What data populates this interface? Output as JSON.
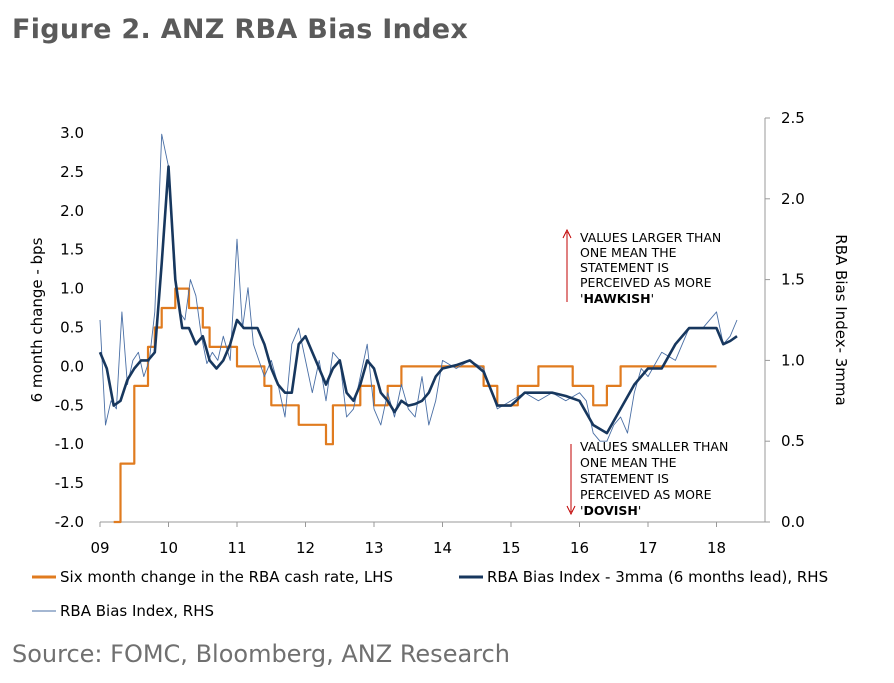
{
  "header": {
    "title": "Figure 2. ANZ RBA Bias Index"
  },
  "footer": {
    "source": "Source: FOMC, Bloomberg, ANZ Research"
  },
  "colors": {
    "cash_rate": "#e07b1f",
    "bias_3mma": "#17375e",
    "bias_raw": "#4a6fa5",
    "annotation_arrow": "#c00000"
  },
  "chart_data": {
    "type": "line",
    "x_ticks": [
      "09",
      "10",
      "11",
      "12",
      "13",
      "14",
      "15",
      "16",
      "17",
      "18"
    ],
    "y_left": {
      "label": "6 month change - bps",
      "ylim": [
        -2.0,
        3.0
      ],
      "ticks": [
        "-2.0",
        "-1.5",
        "-1.0",
        "-0.5",
        "0.0",
        "0.5",
        "1.0",
        "1.5",
        "2.0",
        "2.5",
        "3.0"
      ]
    },
    "y_right": {
      "label": "RBA Bias Index- 3mma",
      "ylim": [
        0.0,
        2.5
      ],
      "ticks": [
        "0.0",
        "0.5",
        "1.0",
        "1.5",
        "2.0",
        "2.5"
      ]
    },
    "annotations": {
      "hawkish": {
        "lines": [
          "VALUES LARGER THAN",
          "ONE MEAN THE",
          "STATEMENT  IS",
          "PERCEIVED AS MORE"
        ],
        "emphasis": "HAWKISH"
      },
      "dovish": {
        "lines": [
          "VALUES SMALLER THAN",
          "ONE MEAN THE",
          "STATEMENT  IS",
          "PERCEIVED AS MORE"
        ],
        "emphasis": "DOVISH"
      }
    },
    "series": [
      {
        "name": "Six month change in the RBA cash rate, LHS",
        "axis": "left",
        "x": [
          2009.2,
          2009.3,
          2009.4,
          2009.5,
          2009.6,
          2009.7,
          2009.8,
          2009.9,
          2010.0,
          2010.1,
          2010.2,
          2010.3,
          2010.4,
          2010.5,
          2010.6,
          2010.7,
          2010.8,
          2010.9,
          2011.0,
          2011.1,
          2011.2,
          2011.3,
          2011.4,
          2011.5,
          2011.6,
          2011.7,
          2011.8,
          2011.9,
          2012.0,
          2012.1,
          2012.2,
          2012.3,
          2012.4,
          2012.5,
          2012.6,
          2012.7,
          2012.8,
          2012.9,
          2013.0,
          2013.1,
          2013.2,
          2013.3,
          2013.4,
          2013.5,
          2013.6,
          2013.7,
          2013.8,
          2013.9,
          2014.0,
          2014.5,
          2014.6,
          2014.7,
          2014.8,
          2014.9,
          2015.0,
          2015.1,
          2015.2,
          2015.3,
          2015.4,
          2015.5,
          2015.6,
          2015.7,
          2015.8,
          2015.9,
          2016.0,
          2016.1,
          2016.2,
          2016.3,
          2016.4,
          2016.5,
          2016.6,
          2016.7,
          2016.8,
          2016.9,
          2017.0,
          2017.5,
          2017.6,
          2017.7,
          2017.8,
          2017.9,
          2018.0
        ],
        "values": [
          -2.0,
          -1.25,
          -1.25,
          -0.25,
          -0.25,
          0.25,
          0.5,
          0.75,
          0.75,
          1.0,
          1.0,
          0.75,
          0.75,
          0.5,
          0.25,
          0.25,
          0.25,
          0.25,
          0.0,
          0.0,
          0.0,
          0.0,
          -0.25,
          -0.5,
          -0.5,
          -0.5,
          -0.5,
          -0.75,
          -0.75,
          -0.75,
          -0.75,
          -1.0,
          -0.5,
          -0.5,
          -0.5,
          -0.5,
          -0.25,
          -0.25,
          -0.5,
          -0.5,
          -0.25,
          -0.25,
          0.0,
          0.0,
          0.0,
          0.0,
          0.0,
          0.0,
          0.0,
          0.0,
          -0.25,
          -0.25,
          -0.5,
          -0.5,
          -0.5,
          -0.25,
          -0.25,
          -0.25,
          0.0,
          0.0,
          0.0,
          0.0,
          0.0,
          -0.25,
          -0.25,
          -0.25,
          -0.5,
          -0.5,
          -0.25,
          -0.25,
          0.0,
          0.0,
          0.0,
          0.0,
          0.0,
          0.0,
          0.0,
          0.0,
          0.0,
          0.0,
          0.0
        ]
      },
      {
        "name": "RBA Bias Index - 3mma (6 months lead), RHS",
        "axis": "right",
        "x": [
          2009.0,
          2009.1,
          2009.2,
          2009.3,
          2009.4,
          2009.5,
          2009.6,
          2009.7,
          2009.8,
          2009.9,
          2010.0,
          2010.1,
          2010.2,
          2010.3,
          2010.4,
          2010.5,
          2010.6,
          2010.7,
          2010.8,
          2010.9,
          2011.0,
          2011.1,
          2011.2,
          2011.3,
          2011.4,
          2011.5,
          2011.6,
          2011.7,
          2011.8,
          2011.9,
          2012.0,
          2012.1,
          2012.2,
          2012.3,
          2012.4,
          2012.5,
          2012.6,
          2012.7,
          2012.8,
          2012.9,
          2013.0,
          2013.1,
          2013.2,
          2013.3,
          2013.4,
          2013.5,
          2013.6,
          2013.7,
          2013.8,
          2013.9,
          2014.0,
          2014.2,
          2014.4,
          2014.6,
          2014.8,
          2015.0,
          2015.2,
          2015.4,
          2015.6,
          2015.8,
          2016.0,
          2016.2,
          2016.4,
          2016.6,
          2016.8,
          2017.0,
          2017.2,
          2017.4,
          2017.6,
          2017.8,
          2018.0,
          2018.1,
          2018.2,
          2018.3
        ],
        "values": [
          1.05,
          0.95,
          0.72,
          0.75,
          0.88,
          0.95,
          1.0,
          1.0,
          1.05,
          1.6,
          2.2,
          1.5,
          1.2,
          1.2,
          1.1,
          1.15,
          1.0,
          0.95,
          1.0,
          1.1,
          1.25,
          1.2,
          1.2,
          1.2,
          1.1,
          0.95,
          0.85,
          0.8,
          0.8,
          1.1,
          1.15,
          1.05,
          0.95,
          0.85,
          0.95,
          1.0,
          0.8,
          0.75,
          0.85,
          1.0,
          0.95,
          0.8,
          0.75,
          0.68,
          0.75,
          0.72,
          0.73,
          0.75,
          0.8,
          0.9,
          0.95,
          0.97,
          1.0,
          0.93,
          0.72,
          0.72,
          0.8,
          0.8,
          0.8,
          0.78,
          0.75,
          0.6,
          0.55,
          0.7,
          0.85,
          0.95,
          0.95,
          1.1,
          1.2,
          1.2,
          1.2,
          1.1,
          1.12,
          1.15
        ]
      },
      {
        "name": "RBA Bias Index, RHS",
        "axis": "right",
        "x": [
          2009.0,
          2009.08,
          2009.16,
          2009.24,
          2009.32,
          2009.4,
          2009.48,
          2009.56,
          2009.64,
          2009.72,
          2009.8,
          2009.9,
          2010.0,
          2010.08,
          2010.16,
          2010.24,
          2010.32,
          2010.4,
          2010.48,
          2010.56,
          2010.64,
          2010.72,
          2010.8,
          2010.9,
          2011.0,
          2011.08,
          2011.16,
          2011.24,
          2011.32,
          2011.4,
          2011.5,
          2011.6,
          2011.7,
          2011.8,
          2011.9,
          2012.0,
          2012.1,
          2012.2,
          2012.3,
          2012.4,
          2012.5,
          2012.6,
          2012.7,
          2012.8,
          2012.9,
          2013.0,
          2013.1,
          2013.2,
          2013.3,
          2013.4,
          2013.5,
          2013.6,
          2013.7,
          2013.8,
          2013.9,
          2014.0,
          2014.2,
          2014.4,
          2014.6,
          2014.8,
          2015.0,
          2015.2,
          2015.4,
          2015.6,
          2015.8,
          2016.0,
          2016.1,
          2016.2,
          2016.3,
          2016.4,
          2016.5,
          2016.6,
          2016.7,
          2016.8,
          2016.9,
          2017.0,
          2017.2,
          2017.4,
          2017.6,
          2017.8,
          2018.0,
          2018.1,
          2018.2,
          2018.3
        ],
        "values": [
          1.25,
          0.6,
          0.75,
          0.7,
          1.3,
          0.85,
          1.0,
          1.05,
          0.9,
          1.0,
          1.3,
          2.4,
          2.2,
          1.55,
          1.3,
          1.25,
          1.5,
          1.4,
          1.15,
          0.98,
          1.05,
          1.0,
          1.15,
          1.0,
          1.75,
          1.2,
          1.45,
          1.1,
          1.0,
          0.9,
          1.0,
          0.85,
          0.65,
          1.1,
          1.2,
          1.0,
          0.8,
          1.0,
          0.75,
          1.05,
          1.0,
          0.65,
          0.7,
          0.9,
          1.1,
          0.7,
          0.6,
          0.8,
          0.65,
          0.85,
          0.7,
          0.65,
          0.9,
          0.6,
          0.75,
          1.0,
          0.95,
          1.0,
          0.95,
          0.7,
          0.75,
          0.8,
          0.75,
          0.8,
          0.75,
          0.8,
          0.75,
          0.55,
          0.5,
          0.5,
          0.6,
          0.65,
          0.55,
          0.8,
          0.95,
          0.9,
          1.05,
          1.0,
          1.2,
          1.2,
          1.3,
          1.1,
          1.15,
          1.25
        ]
      }
    ]
  }
}
